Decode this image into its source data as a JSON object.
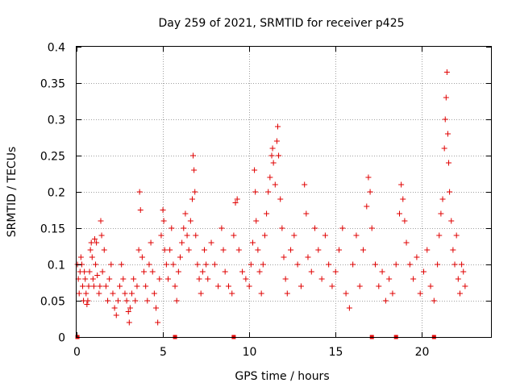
{
  "chart_data": {
    "type": "scatter",
    "title": "Day 259 of 2021, SRMTID for receiver p425",
    "xlabel": "GPS time / hours",
    "ylabel": "SRMTID / TECUs",
    "xlim": [
      0,
      24
    ],
    "ylim": [
      0,
      0.4
    ],
    "x_ticks": [
      0,
      5,
      10,
      15,
      20
    ],
    "y_ticks": [
      0,
      0.05,
      0.1,
      0.15,
      0.2,
      0.25,
      0.3,
      0.35,
      0.4
    ],
    "x_tick_labels": [
      "0",
      "5",
      "10",
      "15",
      "20"
    ],
    "y_tick_labels": [
      "0",
      "0.05",
      "0.1",
      "0.15",
      "0.2",
      "0.25",
      "0.3",
      "0.35",
      "0.4"
    ],
    "grid": true,
    "marker": "plus",
    "color": "#e00000",
    "zero_markers_x": [
      0.05,
      5.7,
      9.1,
      17.1,
      18.5,
      20.7
    ],
    "series": [
      {
        "name": "SRMTID",
        "points": [
          [
            0.05,
            0.1
          ],
          [
            0.1,
            0.08
          ],
          [
            0.15,
            0.06
          ],
          [
            0.2,
            0.09
          ],
          [
            0.25,
            0.11
          ],
          [
            0.3,
            0.1
          ],
          [
            0.35,
            0.07
          ],
          [
            0.4,
            0.05
          ],
          [
            0.45,
            0.09
          ],
          [
            0.5,
            0.08
          ],
          [
            0.55,
            0.06
          ],
          [
            0.6,
            0.045
          ],
          [
            0.65,
            0.05
          ],
          [
            0.7,
            0.07
          ],
          [
            0.75,
            0.09
          ],
          [
            0.8,
            0.12
          ],
          [
            0.85,
            0.13
          ],
          [
            0.9,
            0.11
          ],
          [
            0.95,
            0.08
          ],
          [
            1.0,
            0.07
          ],
          [
            1.05,
            0.135
          ],
          [
            1.1,
            0.1
          ],
          [
            1.15,
            0.13
          ],
          [
            1.2,
            0.085
          ],
          [
            1.3,
            0.06
          ],
          [
            1.35,
            0.07
          ],
          [
            1.4,
            0.16
          ],
          [
            1.45,
            0.14
          ],
          [
            1.5,
            0.09
          ],
          [
            1.6,
            0.12
          ],
          [
            1.7,
            0.07
          ],
          [
            1.8,
            0.05
          ],
          [
            1.9,
            0.08
          ],
          [
            2.0,
            0.1
          ],
          [
            2.1,
            0.06
          ],
          [
            2.2,
            0.04
          ],
          [
            2.3,
            0.03
          ],
          [
            2.4,
            0.05
          ],
          [
            2.5,
            0.07
          ],
          [
            2.6,
            0.1
          ],
          [
            2.7,
            0.08
          ],
          [
            2.8,
            0.06
          ],
          [
            2.9,
            0.05
          ],
          [
            3.0,
            0.035
          ],
          [
            3.05,
            0.02
          ],
          [
            3.1,
            0.04
          ],
          [
            3.2,
            0.06
          ],
          [
            3.3,
            0.08
          ],
          [
            3.4,
            0.05
          ],
          [
            3.5,
            0.07
          ],
          [
            3.6,
            0.12
          ],
          [
            3.65,
            0.2
          ],
          [
            3.7,
            0.175
          ],
          [
            3.8,
            0.11
          ],
          [
            3.9,
            0.09
          ],
          [
            4.0,
            0.07
          ],
          [
            4.1,
            0.05
          ],
          [
            4.2,
            0.1
          ],
          [
            4.3,
            0.13
          ],
          [
            4.4,
            0.09
          ],
          [
            4.5,
            0.06
          ],
          [
            4.6,
            0.04
          ],
          [
            4.7,
            0.02
          ],
          [
            4.8,
            0.08
          ],
          [
            4.9,
            0.14
          ],
          [
            5.0,
            0.175
          ],
          [
            5.05,
            0.16
          ],
          [
            5.1,
            0.12
          ],
          [
            5.2,
            0.1
          ],
          [
            5.3,
            0.08
          ],
          [
            5.4,
            0.12
          ],
          [
            5.5,
            0.15
          ],
          [
            5.6,
            0.1
          ],
          [
            5.7,
            0.07
          ],
          [
            5.8,
            0.05
          ],
          [
            5.9,
            0.09
          ],
          [
            6.0,
            0.11
          ],
          [
            6.1,
            0.13
          ],
          [
            6.2,
            0.15
          ],
          [
            6.3,
            0.17
          ],
          [
            6.4,
            0.14
          ],
          [
            6.5,
            0.12
          ],
          [
            6.6,
            0.16
          ],
          [
            6.7,
            0.19
          ],
          [
            6.75,
            0.25
          ],
          [
            6.8,
            0.23
          ],
          [
            6.85,
            0.2
          ],
          [
            6.9,
            0.14
          ],
          [
            7.0,
            0.1
          ],
          [
            7.1,
            0.08
          ],
          [
            7.2,
            0.06
          ],
          [
            7.3,
            0.09
          ],
          [
            7.4,
            0.12
          ],
          [
            7.5,
            0.1
          ],
          [
            7.6,
            0.08
          ],
          [
            7.8,
            0.13
          ],
          [
            8.0,
            0.1
          ],
          [
            8.2,
            0.07
          ],
          [
            8.4,
            0.15
          ],
          [
            8.5,
            0.12
          ],
          [
            8.6,
            0.09
          ],
          [
            8.8,
            0.07
          ],
          [
            9.0,
            0.06
          ],
          [
            9.1,
            0.14
          ],
          [
            9.2,
            0.185
          ],
          [
            9.3,
            0.19
          ],
          [
            9.4,
            0.12
          ],
          [
            9.6,
            0.09
          ],
          [
            9.8,
            0.08
          ],
          [
            10.0,
            0.07
          ],
          [
            10.1,
            0.1
          ],
          [
            10.2,
            0.13
          ],
          [
            10.3,
            0.23
          ],
          [
            10.35,
            0.2
          ],
          [
            10.4,
            0.16
          ],
          [
            10.5,
            0.12
          ],
          [
            10.6,
            0.09
          ],
          [
            10.7,
            0.06
          ],
          [
            10.8,
            0.1
          ],
          [
            10.9,
            0.14
          ],
          [
            11.0,
            0.17
          ],
          [
            11.1,
            0.2
          ],
          [
            11.2,
            0.22
          ],
          [
            11.3,
            0.25
          ],
          [
            11.35,
            0.26
          ],
          [
            11.4,
            0.24
          ],
          [
            11.5,
            0.21
          ],
          [
            11.6,
            0.27
          ],
          [
            11.65,
            0.29
          ],
          [
            11.7,
            0.25
          ],
          [
            11.8,
            0.19
          ],
          [
            11.9,
            0.15
          ],
          [
            12.0,
            0.11
          ],
          [
            12.1,
            0.08
          ],
          [
            12.2,
            0.06
          ],
          [
            12.4,
            0.12
          ],
          [
            12.6,
            0.14
          ],
          [
            12.8,
            0.1
          ],
          [
            13.0,
            0.07
          ],
          [
            13.2,
            0.21
          ],
          [
            13.3,
            0.17
          ],
          [
            13.4,
            0.11
          ],
          [
            13.6,
            0.09
          ],
          [
            13.8,
            0.15
          ],
          [
            14.0,
            0.12
          ],
          [
            14.2,
            0.08
          ],
          [
            14.4,
            0.14
          ],
          [
            14.6,
            0.1
          ],
          [
            14.8,
            0.07
          ],
          [
            15.0,
            0.09
          ],
          [
            15.2,
            0.12
          ],
          [
            15.4,
            0.15
          ],
          [
            15.6,
            0.06
          ],
          [
            15.8,
            0.04
          ],
          [
            16.0,
            0.1
          ],
          [
            16.2,
            0.14
          ],
          [
            16.4,
            0.07
          ],
          [
            16.6,
            0.12
          ],
          [
            16.8,
            0.18
          ],
          [
            16.9,
            0.22
          ],
          [
            17.0,
            0.2
          ],
          [
            17.1,
            0.15
          ],
          [
            17.3,
            0.1
          ],
          [
            17.5,
            0.07
          ],
          [
            17.7,
            0.09
          ],
          [
            17.9,
            0.05
          ],
          [
            18.1,
            0.08
          ],
          [
            18.3,
            0.06
          ],
          [
            18.5,
            0.1
          ],
          [
            18.7,
            0.17
          ],
          [
            18.8,
            0.21
          ],
          [
            18.9,
            0.19
          ],
          [
            19.0,
            0.16
          ],
          [
            19.1,
            0.13
          ],
          [
            19.3,
            0.1
          ],
          [
            19.5,
            0.08
          ],
          [
            19.7,
            0.11
          ],
          [
            19.9,
            0.06
          ],
          [
            20.1,
            0.09
          ],
          [
            20.3,
            0.12
          ],
          [
            20.5,
            0.07
          ],
          [
            20.7,
            0.05
          ],
          [
            20.9,
            0.1
          ],
          [
            21.0,
            0.14
          ],
          [
            21.1,
            0.17
          ],
          [
            21.2,
            0.19
          ],
          [
            21.3,
            0.26
          ],
          [
            21.35,
            0.3
          ],
          [
            21.4,
            0.33
          ],
          [
            21.45,
            0.365
          ],
          [
            21.5,
            0.28
          ],
          [
            21.55,
            0.24
          ],
          [
            21.6,
            0.2
          ],
          [
            21.7,
            0.16
          ],
          [
            21.8,
            0.12
          ],
          [
            21.9,
            0.1
          ],
          [
            22.0,
            0.14
          ],
          [
            22.1,
            0.08
          ],
          [
            22.2,
            0.06
          ],
          [
            22.3,
            0.1
          ],
          [
            22.4,
            0.09
          ],
          [
            22.5,
            0.07
          ]
        ]
      }
    ]
  }
}
